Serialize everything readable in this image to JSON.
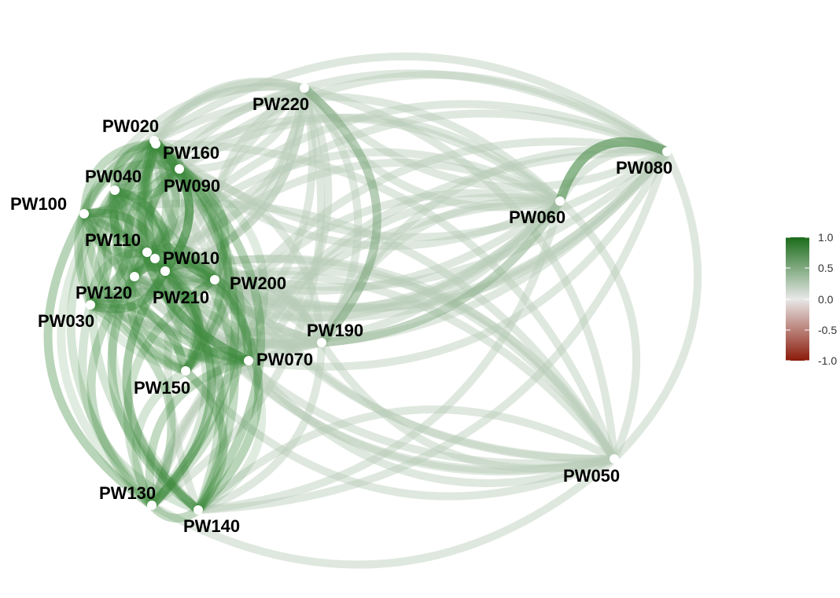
{
  "network": {
    "nodes": [
      {
        "id": "PW010",
        "label": "PW010"
      },
      {
        "id": "PW020",
        "label": "PW020"
      },
      {
        "id": "PW030",
        "label": "PW030"
      },
      {
        "id": "PW040",
        "label": "PW040"
      },
      {
        "id": "PW050",
        "label": "PW050"
      },
      {
        "id": "PW060",
        "label": "PW060"
      },
      {
        "id": "PW070",
        "label": "PW070"
      },
      {
        "id": "PW080",
        "label": "PW080"
      },
      {
        "id": "PW090",
        "label": "PW090"
      },
      {
        "id": "PW100",
        "label": "PW100"
      },
      {
        "id": "PW110",
        "label": "PW110"
      },
      {
        "id": "PW120",
        "label": "PW120"
      },
      {
        "id": "PW130",
        "label": "PW130"
      },
      {
        "id": "PW140",
        "label": "PW140"
      },
      {
        "id": "PW150",
        "label": "PW150"
      },
      {
        "id": "PW160",
        "label": "PW160"
      },
      {
        "id": "PW190",
        "label": "PW190"
      },
      {
        "id": "PW200",
        "label": "PW200"
      },
      {
        "id": "PW210",
        "label": "PW210"
      },
      {
        "id": "PW220",
        "label": "PW220"
      }
    ],
    "edge_colors": {
      "strong": "#1a6b1a",
      "weak": "#c8d8c8",
      "node": "#ffffff"
    }
  },
  "legend": {
    "ticks": [
      "1.0",
      "0.5",
      "0.0",
      "-0.5",
      "-1.0"
    ],
    "colors": {
      "top": "#1a6b1a",
      "mid": "#e8e8e8",
      "bottom": "#8b1a0a"
    }
  }
}
